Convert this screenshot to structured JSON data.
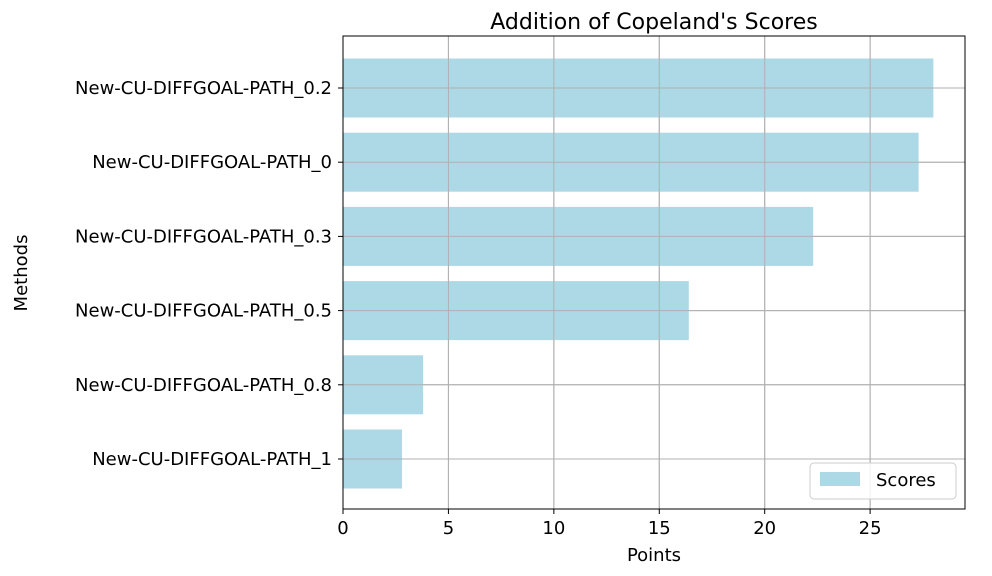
{
  "chart_data": {
    "type": "bar",
    "orientation": "horizontal",
    "title": "Addition of Copeland's Scores",
    "xlabel": "Points",
    "ylabel": "Methods",
    "categories": [
      "New-CU-DIFFGOAL-PATH_0.2",
      "New-CU-DIFFGOAL-PATH_0",
      "New-CU-DIFFGOAL-PATH_0.3",
      "New-CU-DIFFGOAL-PATH_0.5",
      "New-CU-DIFFGOAL-PATH_0.8",
      "New-CU-DIFFGOAL-PATH_1"
    ],
    "series": [
      {
        "name": "Scores",
        "values": [
          28.0,
          27.3,
          22.3,
          16.4,
          3.8,
          2.8
        ]
      }
    ],
    "xlim": [
      0,
      29.5
    ],
    "xticks": [
      0,
      5,
      10,
      15,
      20,
      25
    ],
    "grid": true,
    "legend_position": "lower-right",
    "bar_color": "#add8e6",
    "grid_color": "#b0b0b0"
  }
}
